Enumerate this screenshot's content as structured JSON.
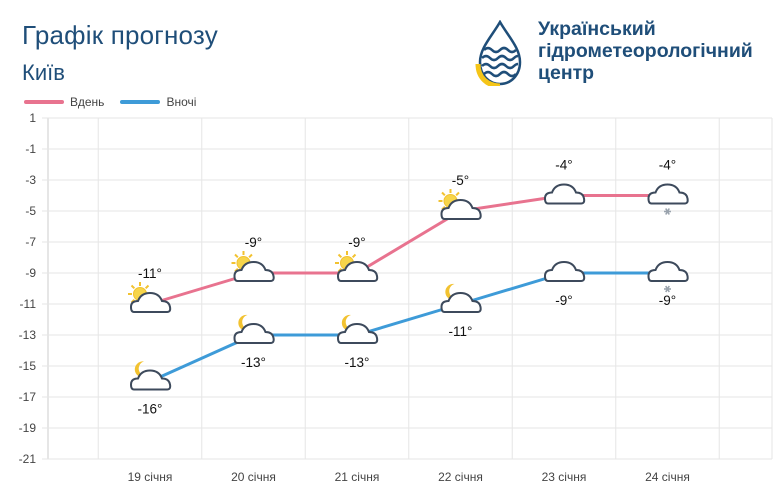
{
  "header": {
    "title": "Графік прогнозу",
    "city": "Київ"
  },
  "logo": {
    "line1": "Український",
    "line2": "гідрометеорологічний",
    "line3": "центр",
    "colors": {
      "navy": "#1f4e79",
      "yellow": "#f5c518"
    }
  },
  "chart_data": {
    "type": "line",
    "categories": [
      "19 січня",
      "20 січня",
      "21 січня",
      "22 січня",
      "23 січня",
      "24 січня"
    ],
    "series": [
      {
        "name": "Вдень",
        "color": "#e8738f",
        "values": [
          -11,
          -9,
          -9,
          -5,
          -4,
          -4
        ],
        "labels": [
          "-11°",
          "-9°",
          "-9°",
          "-5°",
          "-4°",
          "-4°"
        ],
        "icons": [
          "sun-cloud",
          "sun-cloud",
          "sun-cloud",
          "sun-cloud",
          "cloud",
          "cloud-snow"
        ]
      },
      {
        "name": "Вночі",
        "color": "#3e9bd8",
        "values": [
          -16,
          -13,
          -13,
          -11,
          -9,
          -9
        ],
        "labels": [
          "-16°",
          "-13°",
          "-13°",
          "-11°",
          "-9°",
          "-9°"
        ],
        "icons": [
          "moon-cloud",
          "moon-cloud",
          "moon-cloud",
          "moon-cloud",
          "cloud",
          "cloud-snow"
        ]
      }
    ],
    "yticks": [
      1,
      -1,
      -3,
      -5,
      -7,
      -9,
      -11,
      -13,
      -15,
      -17,
      -19,
      -21
    ],
    "ylim": [
      -21,
      1
    ],
    "grid": true,
    "legend_position": "top-left"
  }
}
